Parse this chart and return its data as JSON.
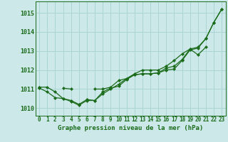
{
  "title": "Graphe pression niveau de la mer (hPa)",
  "hours": [
    0,
    1,
    2,
    3,
    4,
    5,
    6,
    7,
    8,
    9,
    10,
    11,
    12,
    13,
    14,
    15,
    16,
    17,
    18,
    19,
    20,
    21,
    22,
    23
  ],
  "ylim": [
    1009.6,
    1015.6
  ],
  "yticks": [
    1010,
    1011,
    1012,
    1013,
    1014,
    1015
  ],
  "bg_color": "#cce8e8",
  "grid_color": "#aad4d4",
  "line_color": "#1a6b1a",
  "line1": [
    1011.1,
    1011.1,
    1010.85,
    1010.5,
    1010.4,
    1010.2,
    1010.45,
    1010.4,
    1010.85,
    1011.05,
    1011.15,
    1011.5,
    1011.75,
    1011.8,
    1011.8,
    1011.85,
    1012.0,
    1012.05,
    1012.5,
    1013.05,
    1013.15,
    1013.65,
    1014.5,
    1015.2
  ],
  "line2": [
    1011.05,
    1010.85,
    1010.55,
    1010.5,
    1010.35,
    1010.15,
    1010.4,
    1010.4,
    1010.75,
    1011.0,
    1011.25,
    1011.55,
    1011.75,
    1011.8,
    1011.8,
    1011.85,
    1012.1,
    1012.2,
    1012.55,
    1013.1,
    1012.8,
    1013.2,
    null,
    null
  ],
  "line3": [
    1011.1,
    null,
    null,
    1011.05,
    1011.0,
    null,
    null,
    1011.0,
    1011.0,
    1011.1,
    1011.45,
    1011.55,
    1011.8,
    1012.0,
    1012.0,
    1012.0,
    1012.2,
    1012.5,
    1012.85,
    1013.1,
    1013.2,
    1013.65,
    1014.5,
    1015.2
  ],
  "line_lw": 0.9,
  "marker_size": 2.2,
  "tick_fontsize": 5.5,
  "ylabel_fontsize": 6.0,
  "title_fontsize": 6.5
}
